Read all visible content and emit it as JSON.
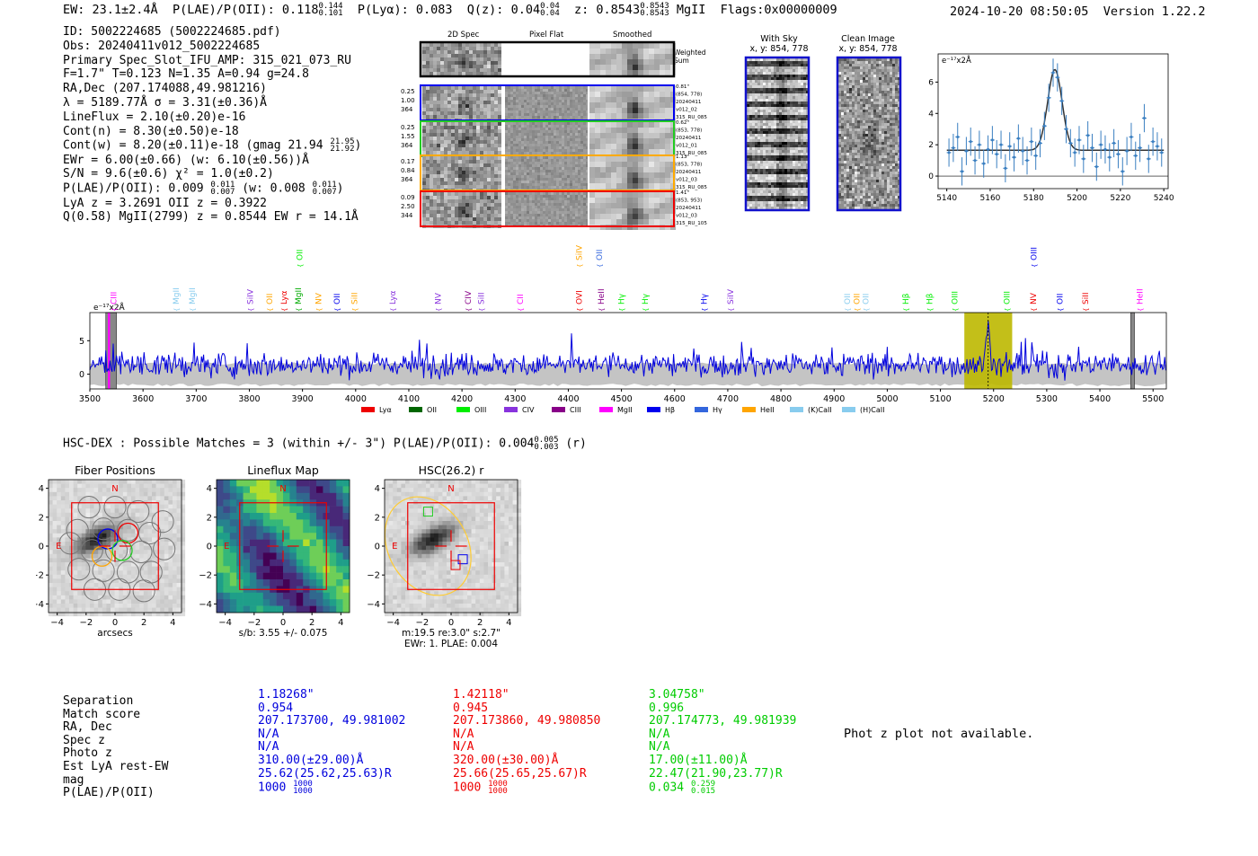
{
  "header": {
    "ew": "EW: 23.1±2.4Å",
    "plae_label": "P(LAE)/P(OII): 0.118",
    "plae_hi": "0.144",
    "plae_lo": "0.101",
    "plya": "P(Lyα): 0.083",
    "qz_label": "Q(z): 0.04",
    "qz_hi": "0.04",
    "qz_lo": "0.04",
    "z_label": "z: 0.8543",
    "z_hi": "0.8543",
    "z_lo": "0.8543",
    "z_line": "MgII",
    "flags": "Flags:0x00000009",
    "timestamp": "2024-10-20 08:50:05",
    "version": "Version 1.22.2"
  },
  "info": {
    "id": "ID: 5002224685 (5002224685.pdf)",
    "obs": "Obs: 20240411v012_5002224685",
    "primary": "Primary Spec_Slot_IFU_AMP: 315_021_073_RU",
    "params": "F=1.7\"  T=0.123  N=1.35  A=0.94  g=24.8",
    "radec": "RA,Dec (207.174088,49.981216)",
    "lambda": "λ = 5189.77Å  σ = 3.31(±0.36)Å",
    "lineflux": "LineFlux = 2.10(±0.20)e-16",
    "contn": "Cont(n) = 8.30(±0.50)e-18",
    "contw": "Cont(w) = 8.20(±0.11)e-18 (gmag 21.94",
    "contw_hi": "21.95",
    "contw_lo": "21.92",
    "ewr": "EWr = 6.00(±0.66) (w: 6.10(±0.56))Å",
    "sn": "S/N = 9.6(±0.6)  χ² = 1.0(±0.2)",
    "plae_a": "P(LAE)/P(OII): 0.009",
    "plae_a_hi": "0.011",
    "plae_a_lo": "0.007",
    "plae_w": "(w: 0.008",
    "plae_w_hi": "0.011",
    "plae_w_lo": "0.007",
    "lyaz": "LyA z = 3.2691  OII z = 0.3922",
    "q": "Q(0.58) MgII(2799) z = 0.8544  EW r = 14.1Å"
  },
  "cutouts": {
    "col_2d": "2D Spec",
    "col_flat": "Pixel Flat",
    "col_smooth": "Smoothed",
    "weighted": "Weighted Sum",
    "rows": [
      {
        "left": [
          "0.25",
          "1.00",
          "364"
        ],
        "right": [
          "0.81\"",
          "(854, 778)",
          "20240411",
          "v012_02",
          "315_RU_085"
        ],
        "color": "#0000ee"
      },
      {
        "left": [
          "0.25",
          "1.55",
          "364"
        ],
        "right": [
          "0.62\"",
          "(853, 778)",
          "20240411",
          "v012_01",
          "315_RU_085"
        ],
        "color": "#22cc22"
      },
      {
        "left": [
          "0.17",
          "0.84",
          "364"
        ],
        "right": [
          "1.13\"",
          "(853, 778)",
          "20240411",
          "v012_03",
          "315_RU_085"
        ],
        "color": "#ffaa00"
      },
      {
        "left": [
          "0.09",
          "2.50",
          "344"
        ],
        "right": [
          "1.41\"",
          "(853, 953)",
          "20240411",
          "v012_03",
          "315_RU_105"
        ],
        "color": "#ee0000"
      }
    ]
  },
  "sky": {
    "with_sky": "With Sky",
    "with_sky_xy": "x, y: 854, 778",
    "clean": "Clean Image",
    "clean_xy": "x, y: 854, 778"
  },
  "zoom_chart": {
    "unit": "e⁻¹⁷x2Å",
    "x_ticks": [
      "5140",
      "5160",
      "5180",
      "5200",
      "5220",
      "5240"
    ],
    "y_ticks": [
      "0",
      "2",
      "4",
      "6"
    ]
  },
  "chart_data": [
    {
      "type": "scatter",
      "title": "",
      "ylabel": "e⁻¹⁷x2Å",
      "xlim": [
        5136,
        5242
      ],
      "ylim": [
        -0.8,
        7.8
      ],
      "x": [
        5141,
        5143,
        5145,
        5147,
        5149,
        5151,
        5153,
        5155,
        5157,
        5159,
        5161,
        5163,
        5165,
        5167,
        5169,
        5171,
        5173,
        5175,
        5177,
        5179,
        5181,
        5183,
        5185,
        5187,
        5189,
        5191,
        5193,
        5195,
        5197,
        5199,
        5201,
        5203,
        5205,
        5207,
        5209,
        5211,
        5213,
        5215,
        5217,
        5219,
        5221,
        5223,
        5225,
        5227,
        5229,
        5231,
        5233,
        5235,
        5237,
        5239
      ],
      "y": [
        1.5,
        1.8,
        2.5,
        0.3,
        1.6,
        2.2,
        1.0,
        2.0,
        0.8,
        1.7,
        2.3,
        1.4,
        2.0,
        0.5,
        1.9,
        1.2,
        2.4,
        1.6,
        1.0,
        2.2,
        1.3,
        2.1,
        3.2,
        5.0,
        6.6,
        6.3,
        4.8,
        3.0,
        2.1,
        1.5,
        2.3,
        1.1,
        2.6,
        1.8,
        0.6,
        2.0,
        1.7,
        1.2,
        2.1,
        1.4,
        0.3,
        1.6,
        2.5,
        1.3,
        1.8,
        3.7,
        1.1,
        2.2,
        1.9,
        1.5
      ],
      "err": 0.9,
      "model": {
        "continuum": 1.65,
        "peak": 6.8,
        "center": 5189.8,
        "sigma": 3.3
      }
    },
    {
      "type": "line",
      "title": "",
      "ylabel": "e⁻¹⁷x2Å",
      "xlim": [
        3500,
        5525
      ],
      "ylim": [
        -2.2,
        9.2
      ],
      "x_ticks": [
        3500,
        3600,
        3700,
        3800,
        3900,
        4000,
        4100,
        4200,
        4300,
        4400,
        4500,
        4600,
        4700,
        4800,
        4900,
        5000,
        5100,
        5200,
        5300,
        5400,
        5500
      ],
      "y_ticks": [
        0,
        5
      ],
      "highlight_range": [
        5145,
        5235
      ],
      "line_center": 5189.8,
      "masked_ranges": [
        [
          3530,
          3550
        ],
        [
          5458,
          5465
        ]
      ],
      "marked_ranges": [
        [
          3534,
          3538
        ]
      ],
      "legend": [
        "Lyα",
        "OII",
        "OIII",
        "CIV",
        "CIII",
        "MgII",
        "Hβ",
        "Hγ",
        "HeII",
        "(K)CaII",
        "(H)CaII"
      ],
      "legend_colors": [
        "#ee0000",
        "#006600",
        "#00ee00",
        "#8833dd",
        "#880088",
        "#ff00ff",
        "#0000ee",
        "#3366dd",
        "#ffa500",
        "#88ccee",
        "#88ccee"
      ],
      "line_labels": [
        {
          "name": "CIII",
          "x": 3545,
          "color": "#ff00ff",
          "row": 0
        },
        {
          "name": "MgII",
          "x": 3662,
          "color": "#88ccee",
          "row": 0
        },
        {
          "name": "MgII",
          "x": 3693,
          "color": "#88ccee",
          "row": 0
        },
        {
          "name": "SiIV",
          "x": 3802,
          "color": "#8833dd",
          "row": 0
        },
        {
          "name": "OII",
          "x": 3838,
          "color": "#ffa500",
          "row": 0
        },
        {
          "name": "Lyα",
          "x": 3865,
          "color": "#ee0000",
          "row": 0
        },
        {
          "name": "MgII",
          "x": 3892,
          "color": "#00aa00",
          "row": 0
        },
        {
          "name": "OII",
          "x": 3895,
          "color": "#00ee00",
          "row": 1
        },
        {
          "name": "NV",
          "x": 3930,
          "color": "#ffa500",
          "row": 0
        },
        {
          "name": "OII",
          "x": 3965,
          "color": "#0000ee",
          "row": 0
        },
        {
          "name": "SiII",
          "x": 3998,
          "color": "#ffa500",
          "row": 0
        },
        {
          "name": "Lyα",
          "x": 4070,
          "color": "#8833dd",
          "row": 0
        },
        {
          "name": "NV",
          "x": 4155,
          "color": "#8833dd",
          "row": 0
        },
        {
          "name": "CIV",
          "x": 4212,
          "color": "#880088",
          "row": 0
        },
        {
          "name": "SiII",
          "x": 4236,
          "color": "#8833dd",
          "row": 0
        },
        {
          "name": "CII",
          "x": 4310,
          "color": "#ff00ff",
          "row": 0
        },
        {
          "name": "SiIV",
          "x": 4420,
          "color": "#ffa500",
          "row": 1
        },
        {
          "name": "OVI",
          "x": 4420,
          "color": "#ee0000",
          "row": 0
        },
        {
          "name": "OII",
          "x": 4458,
          "color": "#3366dd",
          "row": 1
        },
        {
          "name": "HeII",
          "x": 4462,
          "color": "#880088",
          "row": 0
        },
        {
          "name": "Hγ",
          "x": 4500,
          "color": "#00ee00",
          "row": 0
        },
        {
          "name": "Hγ",
          "x": 4545,
          "color": "#00ee00",
          "row": 0
        },
        {
          "name": "Hγ",
          "x": 4655,
          "color": "#0000ee",
          "row": 0
        },
        {
          "name": "SiIV",
          "x": 4705,
          "color": "#8833dd",
          "row": 0
        },
        {
          "name": "OII",
          "x": 4925,
          "color": "#88ccee",
          "row": 0
        },
        {
          "name": "OII",
          "x": 4943,
          "color": "#ffa500",
          "row": 0
        },
        {
          "name": "OII",
          "x": 4960,
          "color": "#88ccee",
          "row": 0
        },
        {
          "name": "Hβ",
          "x": 5035,
          "color": "#00ee00",
          "row": 0
        },
        {
          "name": "Hβ",
          "x": 5080,
          "color": "#00ee00",
          "row": 0
        },
        {
          "name": "OIII",
          "x": 5127,
          "color": "#00ee00",
          "row": 0
        },
        {
          "name": "OIII",
          "x": 5225,
          "color": "#00ee00",
          "row": 0
        },
        {
          "name": "NV",
          "x": 5275,
          "color": "#ee0000",
          "row": 0
        },
        {
          "name": "OIII",
          "x": 5276,
          "color": "#0000ee",
          "row": 1
        },
        {
          "name": "OII",
          "x": 5325,
          "color": "#0000ee",
          "row": 0
        },
        {
          "name": "SiII",
          "x": 5373,
          "color": "#ee0000",
          "row": 0
        },
        {
          "name": "HeII",
          "x": 5475,
          "color": "#ff00ff",
          "row": 0
        }
      ]
    },
    {
      "type": "heatmap",
      "title": "Fiber Positions",
      "xlabel": "arcsecs",
      "xlim": [
        -4.6,
        4.6
      ],
      "ylim": [
        -4.6,
        4.6
      ],
      "ticks": [
        -4,
        -2,
        0,
        2,
        4
      ]
    },
    {
      "type": "heatmap",
      "title": "Lineflux Map",
      "xlabel": "s/b: 3.55 +/- 0.075",
      "xlim": [
        -4.6,
        4.6
      ],
      "ylim": [
        -4.6,
        4.6
      ],
      "ticks": [
        -4,
        -2,
        0,
        2,
        4
      ]
    },
    {
      "type": "heatmap",
      "title": "HSC(26.2) r",
      "xlabel": "m:19.5  re:3.0\"  s:2.7\"",
      "xlabel2": "EWr: 1. PLAE: 0.004",
      "xlim": [
        -4.6,
        4.6
      ],
      "ylim": [
        -4.6,
        4.6
      ],
      "ticks": [
        -4,
        -2,
        0,
        2,
        4
      ]
    }
  ],
  "compass": {
    "n": "N",
    "e": "E"
  },
  "hsc": {
    "title": "HSC-DEX : Possible Matches = 3 (within +/- 3\")  P(LAE)/P(OII): 0.004",
    "hi": "0.005",
    "lo": "0.003",
    "band": "(r)"
  },
  "table": {
    "labels": [
      "Separation",
      "Match score",
      "RA, Dec",
      "Spec z",
      "Photo z",
      "Est LyA rest-EW",
      "mag",
      "P(LAE)/P(OII)"
    ],
    "columns": [
      {
        "color": "#0000dd",
        "values": [
          "1.18268\"",
          "0.954",
          "207.173700, 49.981002",
          "N/A",
          "N/A",
          "310.00(±29.00)Å",
          "25.62(25.62,25.63)R",
          "1000"
        ],
        "plae_hi": "1000",
        "plae_lo": "1000"
      },
      {
        "color": "#ee0000",
        "values": [
          "1.42118\"",
          "0.945",
          "207.173860, 49.980850",
          "N/A",
          "N/A",
          "320.00(±30.00)Å",
          "25.66(25.65,25.67)R",
          "1000"
        ],
        "plae_hi": "1000",
        "plae_lo": "1000"
      },
      {
        "color": "#00cc00",
        "values": [
          "3.04758\"",
          "0.996",
          "207.174773, 49.981939",
          "N/A",
          "N/A",
          "17.00(±11.00)Å",
          "22.47(21.90,23.77)R",
          "0.034"
        ],
        "plae_hi": "0.259",
        "plae_lo": "0.015"
      }
    ],
    "photz_note": "Phot z plot not available."
  }
}
